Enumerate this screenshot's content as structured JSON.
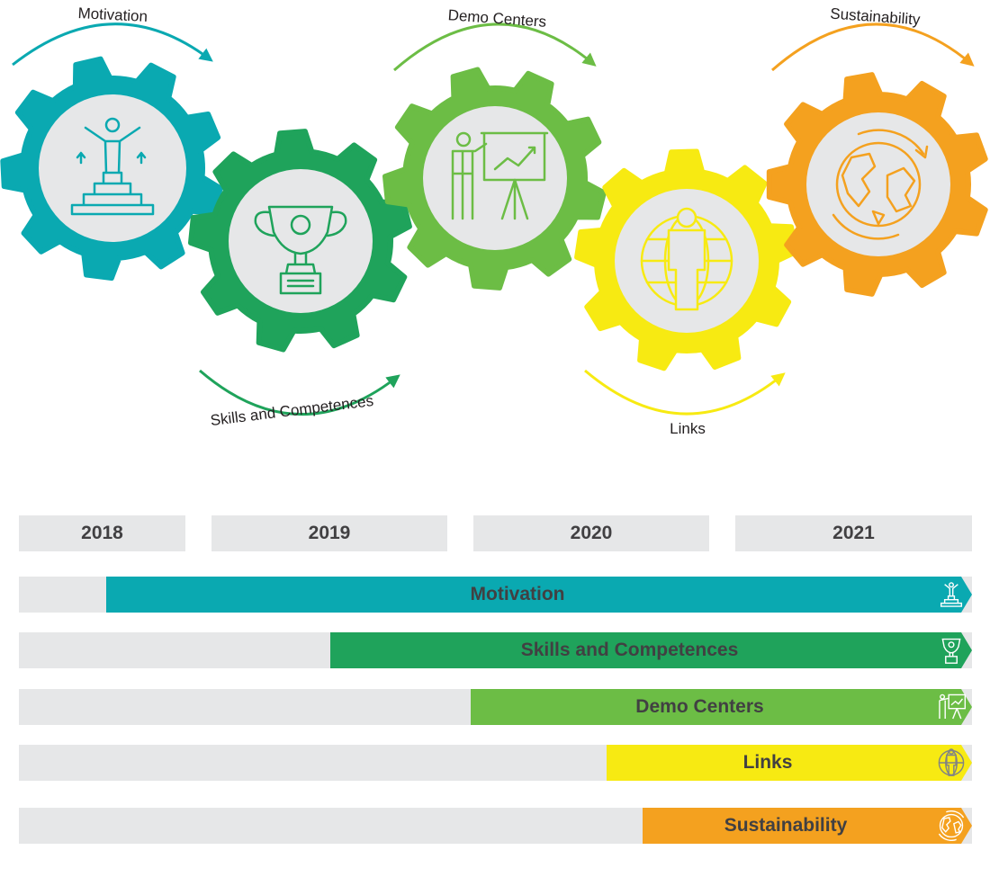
{
  "stages": [
    {
      "id": "motivation",
      "label": "Motivation",
      "color": "#0aa9b1",
      "icon": "podium-person-icon"
    },
    {
      "id": "skills",
      "label": "Skills and Competences",
      "color": "#1fa35b",
      "icon": "trophy-icon"
    },
    {
      "id": "demo",
      "label": "Demo Centers",
      "color": "#6cbd45",
      "icon": "presenter-chart-icon"
    },
    {
      "id": "links",
      "label": "Links",
      "color": "#f7ea12",
      "icon": "person-globe-icon"
    },
    {
      "id": "sustainability",
      "label": "Sustainability",
      "color": "#f4a11f",
      "icon": "earth-cycle-icon"
    }
  ],
  "timeline": {
    "years": [
      "2018",
      "2019",
      "2020",
      "2021"
    ],
    "bars": [
      {
        "label": "Motivation",
        "start_fraction": 0.092,
        "color": "#0aa9b1"
      },
      {
        "label": "Skills and Competences",
        "start_fraction": 0.327,
        "color": "#1fa35b"
      },
      {
        "label": "Demo Centers",
        "start_fraction": 0.474,
        "color": "#6cbd45"
      },
      {
        "label": "Links",
        "start_fraction": 0.617,
        "color": "#f7ea12"
      },
      {
        "label": "Sustainability",
        "start_fraction": 0.654,
        "color": "#f4a11f"
      }
    ],
    "track_color": "#e6e7e8",
    "text_color": "#414042"
  }
}
